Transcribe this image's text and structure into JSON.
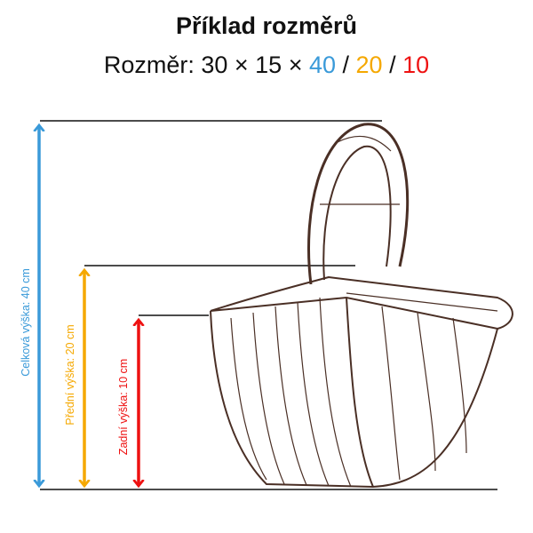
{
  "title": "Příklad rozměrů",
  "dimensions": {
    "prefix": "Rozměr: 30 × 15 × ",
    "total": "40",
    "sep1": " / ",
    "front": "20",
    "sep2": " / ",
    "back": "10"
  },
  "labels": {
    "total": "Celková výška: 40 cm",
    "front": "Přední výška: 20 cm",
    "back": "Zadní výška: 10 cm"
  },
  "colors": {
    "total": "#3a9ad9",
    "front": "#f5a800",
    "back": "#ee1111",
    "sketch": "#4a2f25"
  }
}
